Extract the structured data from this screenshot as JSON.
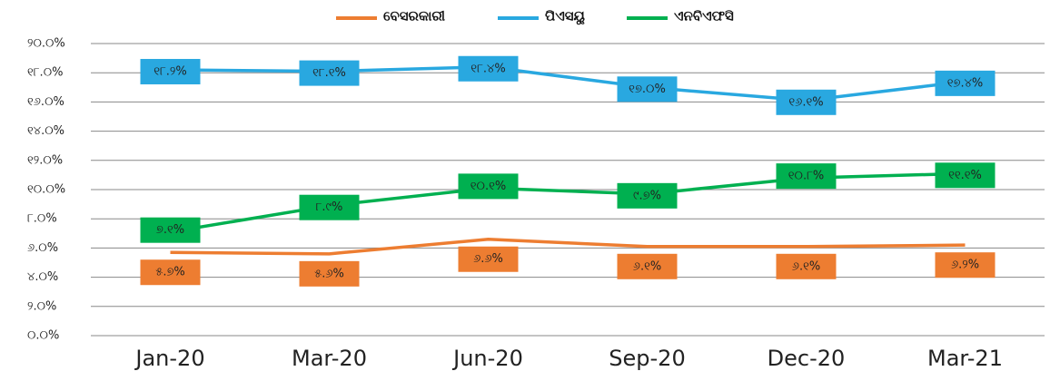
{
  "chart_data": {
    "type": "line",
    "categories": [
      "Jan-20",
      "Mar-20",
      "Jun-20",
      "Sep-20",
      "Dec-20",
      "Mar-21"
    ],
    "series": [
      {
        "name": "ବେସରକାରୀ",
        "color": "#ed7d31",
        "values": [
          5.7,
          5.6,
          6.6,
          6.1,
          6.1,
          6.2
        ],
        "value_labels": [
          "୫.୭%",
          "୫.୬%",
          "୬.୬%",
          "୬.୧%",
          "୬.୧%",
          "୬.୨%"
        ]
      },
      {
        "name": "ପିଏସୟୁ",
        "color": "#29a8e0",
        "values": [
          18.2,
          18.1,
          18.4,
          17.0,
          16.1,
          17.4
        ],
        "value_labels": [
          "୧୮.୨%",
          "୧୮.୧%",
          "୧୮.୪%",
          "୧୭.୦%",
          "୧୬.୧%",
          "୧୭.୪%"
        ]
      },
      {
        "name": "ଏନବିଏଫସି",
        "color": "#00b050",
        "values": [
          7.1,
          8.9,
          10.1,
          9.7,
          10.8,
          11.1
        ],
        "value_labels": [
          "୭.୧%",
          "୮.୯%",
          "୧୦.୧%",
          "୯.୭%",
          "୧୦.୮%",
          "୧୧.୧%"
        ]
      }
    ],
    "ylim": [
      0,
      20
    ],
    "yticks": [
      {
        "value": 0,
        "label": "୦.୦%"
      },
      {
        "value": 2,
        "label": "୨.୦%"
      },
      {
        "value": 4,
        "label": "୪.୦%"
      },
      {
        "value": 6,
        "label": "୬.୦%"
      },
      {
        "value": 8,
        "label": "୮.୦%"
      },
      {
        "value": 10,
        "label": "୧୦.୦%"
      },
      {
        "value": 12,
        "label": "୧୨.୦%"
      },
      {
        "value": 14,
        "label": "୧୪.୦%"
      },
      {
        "value": 16,
        "label": "୧୬.୦%"
      },
      {
        "value": 18,
        "label": "୧୮.୦%"
      },
      {
        "value": 20,
        "label": "୨୦.୦%"
      }
    ],
    "grid": true,
    "legend": "top"
  }
}
